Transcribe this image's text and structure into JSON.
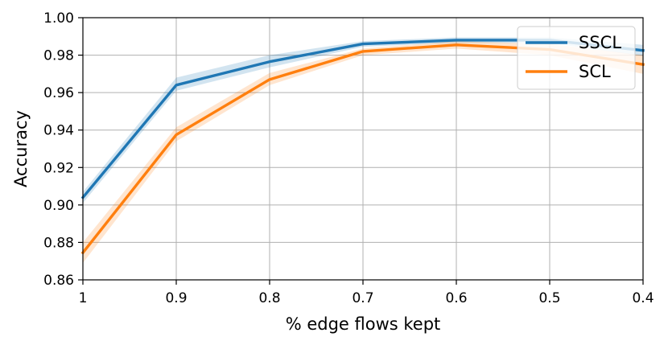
{
  "chart_data": {
    "type": "line",
    "title": "",
    "xlabel": "% edge flows kept",
    "ylabel": "Accuracy",
    "x": [
      1,
      0.9,
      0.8,
      0.7,
      0.6,
      0.5,
      0.4
    ],
    "x_tick_labels": [
      "1",
      "0.9",
      "0.8",
      "0.7",
      "0.6",
      "0.5",
      "0.4"
    ],
    "x_reversed": true,
    "xlim": [
      1,
      0.4
    ],
    "ylim": [
      0.86,
      1.0
    ],
    "y_ticks": [
      0.86,
      0.88,
      0.9,
      0.92,
      0.94,
      0.96,
      0.98,
      1.0
    ],
    "y_tick_labels": [
      "0.86",
      "0.88",
      "0.90",
      "0.92",
      "0.94",
      "0.96",
      "0.98",
      "1.00"
    ],
    "grid": true,
    "legend_position": "top-right",
    "series": [
      {
        "name": "SSCL",
        "color": "#1f77b4",
        "values": [
          0.904,
          0.964,
          0.9765,
          0.986,
          0.988,
          0.988,
          0.9825
        ],
        "lower": [
          0.901,
          0.961,
          0.9735,
          0.9845,
          0.9865,
          0.9865,
          0.9795
        ],
        "upper": [
          0.907,
          0.968,
          0.98,
          0.9875,
          0.9895,
          0.9895,
          0.9855
        ]
      },
      {
        "name": "SCL",
        "color": "#ff7f0e",
        "values": [
          0.8745,
          0.9375,
          0.967,
          0.982,
          0.9855,
          0.983,
          0.975
        ],
        "lower": [
          0.869,
          0.934,
          0.964,
          0.98,
          0.9835,
          0.98,
          0.97
        ],
        "upper": [
          0.88,
          0.9415,
          0.9705,
          0.9835,
          0.9875,
          0.986,
          0.98
        ]
      }
    ]
  }
}
